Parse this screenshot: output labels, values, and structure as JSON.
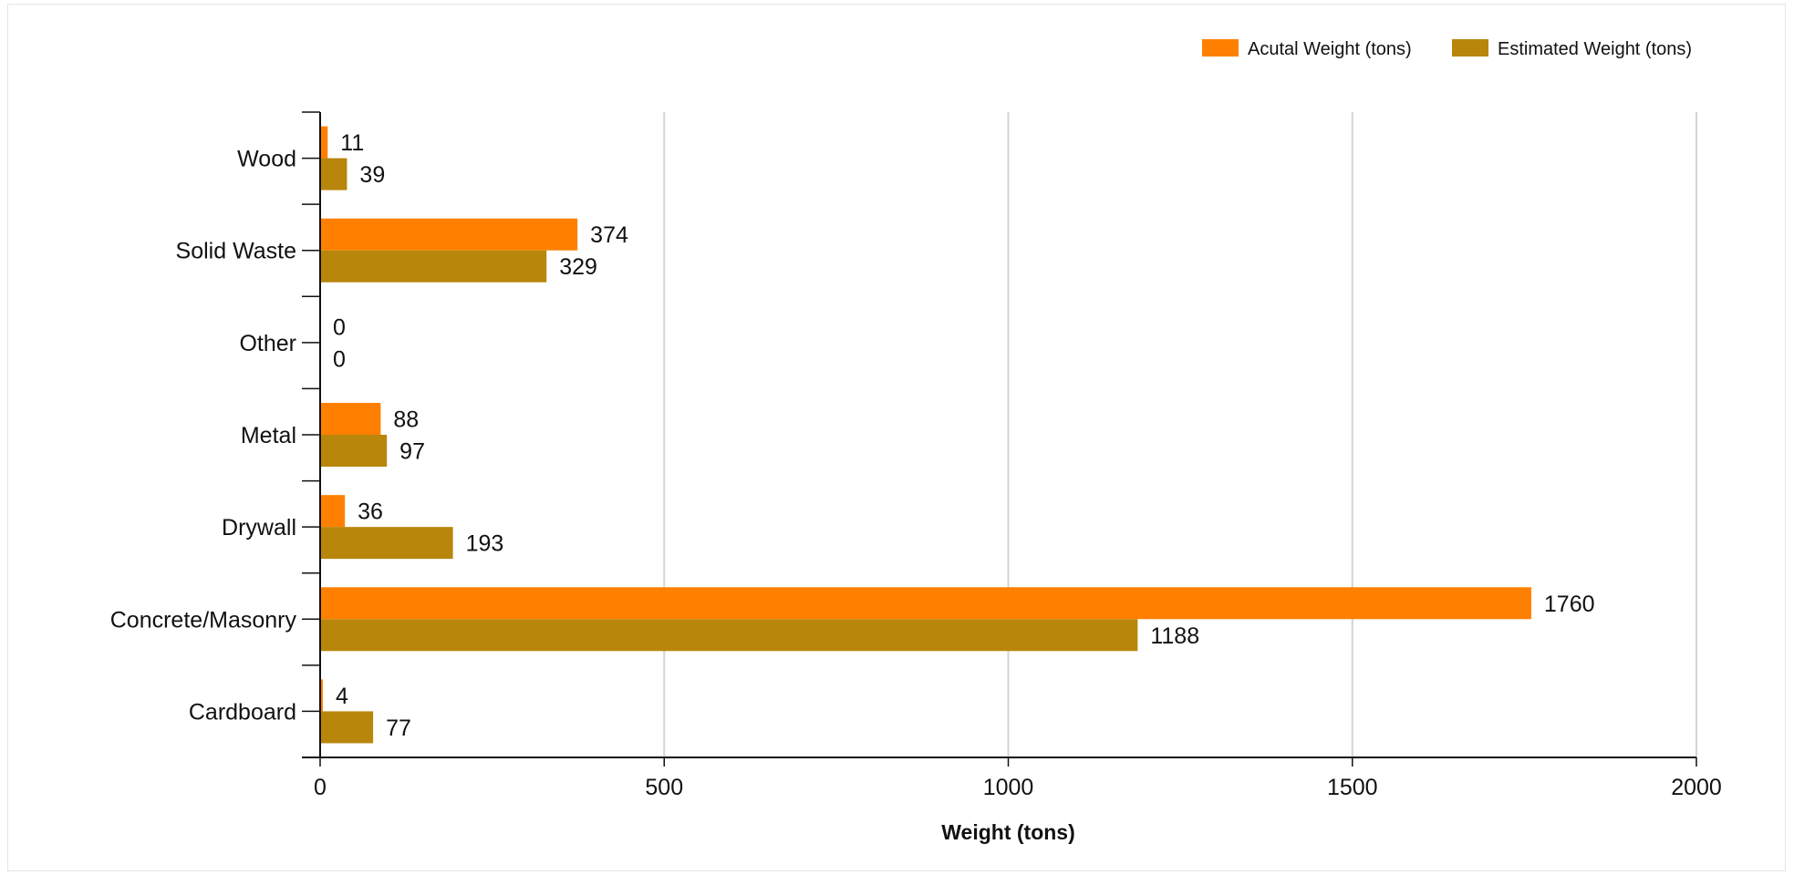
{
  "chart_data": {
    "type": "bar",
    "orientation": "horizontal",
    "categories": [
      "Wood",
      "Solid Waste",
      "Other",
      "Metal",
      "Drywall",
      "Concrete/Masonry",
      "Cardboard"
    ],
    "series": [
      {
        "name": "Acutal Weight (tons)",
        "color": "#ff8000",
        "values": [
          11,
          374,
          0,
          88,
          36,
          1760,
          4
        ]
      },
      {
        "name": "Estimated Weight (tons)",
        "color": "#b8860b",
        "values": [
          39,
          329,
          0,
          97,
          193,
          1188,
          77
        ]
      }
    ],
    "xlabel": "Weight (tons)",
    "ylabel": "",
    "xlim": [
      0,
      2000
    ],
    "xticks": [
      0,
      500,
      1000,
      1500,
      2000
    ],
    "grid": true,
    "legend_position": "top-right",
    "data_labels": true
  }
}
